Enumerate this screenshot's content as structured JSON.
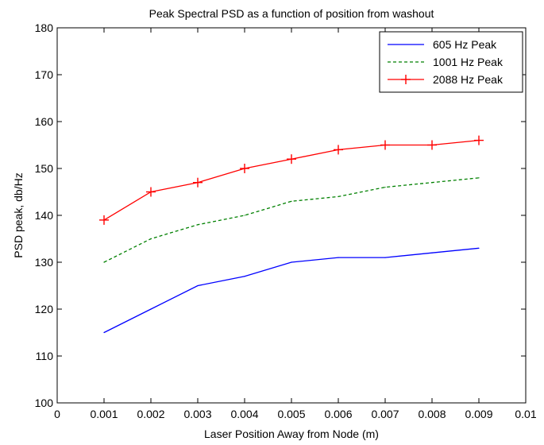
{
  "chart_data": {
    "type": "line",
    "title": "Peak Spectral PSD as a function of position from washout",
    "xlabel": "Laser Position Away from Node (m)",
    "ylabel": "PSD peak, db/Hz",
    "xlim": [
      0,
      0.01
    ],
    "ylim": [
      100,
      180
    ],
    "xticks": [
      "0",
      "0.001",
      "0.002",
      "0.003",
      "0.004",
      "0.005",
      "0.006",
      "0.007",
      "0.008",
      "0.009",
      "0.01"
    ],
    "yticks": [
      "100",
      "110",
      "120",
      "130",
      "140",
      "150",
      "160",
      "170",
      "180"
    ],
    "x": [
      0.001,
      0.002,
      0.003,
      0.004,
      0.005,
      0.006,
      0.007,
      0.008,
      0.009
    ],
    "grid": false,
    "legend_position": "top-right",
    "series": [
      {
        "name": "605 Hz Peak",
        "values": [
          115,
          120,
          125,
          127,
          130,
          131,
          131,
          132,
          133
        ],
        "color": "#0000ff",
        "style": "solid",
        "marker": "none"
      },
      {
        "name": "1001 Hz Peak",
        "values": [
          130,
          135,
          138,
          140,
          143,
          144,
          146,
          147,
          148
        ],
        "color": "#008000",
        "style": "dashed",
        "marker": "none"
      },
      {
        "name": "2088 Hz Peak",
        "values": [
          139,
          145,
          147,
          150,
          152,
          154,
          155,
          155,
          156
        ],
        "color": "#ff0000",
        "style": "solid",
        "marker": "plus"
      }
    ]
  }
}
